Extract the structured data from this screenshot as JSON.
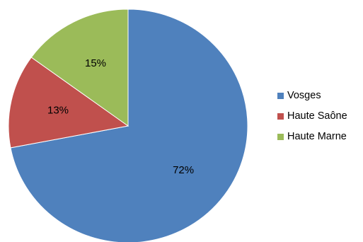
{
  "chart_data": {
    "type": "pie",
    "categories": [
      "Vosges",
      "Haute Saône",
      "Haute Marne"
    ],
    "values": [
      72,
      13,
      15
    ],
    "labels": [
      "72%",
      "13%",
      "15%"
    ],
    "colors": [
      "#4f81bd",
      "#c0504d",
      "#9bbb59"
    ],
    "legend_position": "right"
  }
}
